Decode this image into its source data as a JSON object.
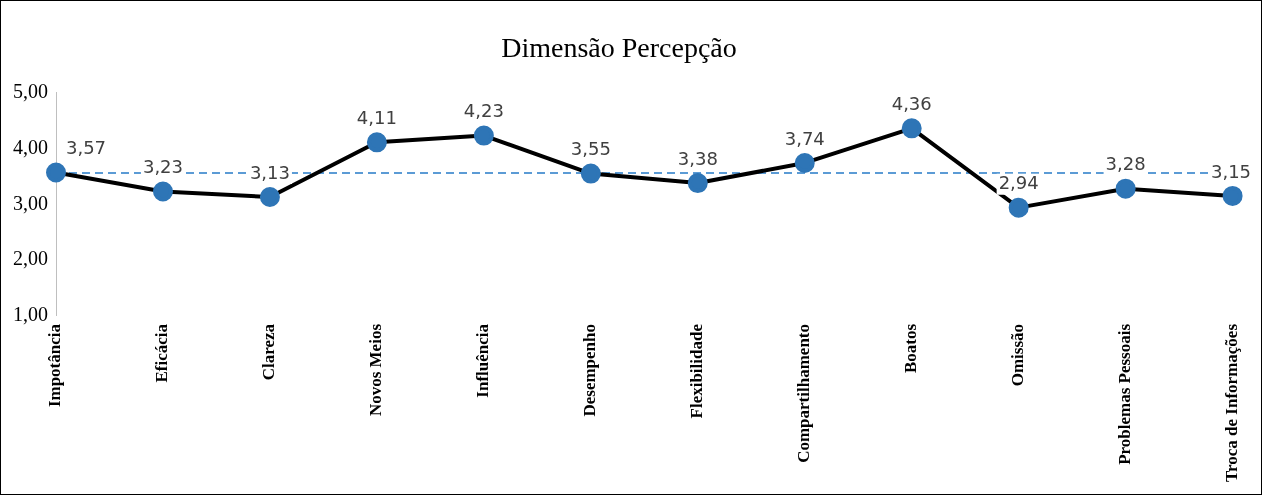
{
  "chart_data": {
    "type": "line",
    "title": "Dimensão Percepção",
    "categories": [
      "Impotância",
      "Eficácia",
      "Clareza",
      "Novos Meios",
      "Influência",
      "Desempenho",
      "Flexibilidade",
      "Compartilhamento",
      "Boatos",
      "Omissão",
      "Problemas Pessoais",
      "Troca de Informações"
    ],
    "series": [
      {
        "color": "#000000",
        "values": [
          3.57,
          3.23,
          3.13,
          4.11,
          4.23,
          3.55,
          3.38,
          3.74,
          4.36,
          2.94,
          3.28,
          3.15
        ],
        "value_labels": [
          "3,57",
          "3,23",
          "3,13",
          "4,11",
          "4,23",
          "3,55",
          "3,38",
          "3,74",
          "4,36",
          "2,94",
          "3,28",
          "3,15"
        ]
      }
    ],
    "ylim": [
      1,
      5
    ],
    "yticks": [
      {
        "value": 1,
        "label": "1,00"
      },
      {
        "value": 2,
        "label": "2,00"
      },
      {
        "value": 3,
        "label": "3,00"
      },
      {
        "value": 4,
        "label": "4,00"
      },
      {
        "value": 5,
        "label": "5,00"
      }
    ],
    "ref_lines": [
      {
        "axis": "y",
        "value": 3.56,
        "color": "#5b9bd5",
        "line_style": "dashed"
      }
    ],
    "marker": "circle",
    "grid": false,
    "legend": false
  }
}
